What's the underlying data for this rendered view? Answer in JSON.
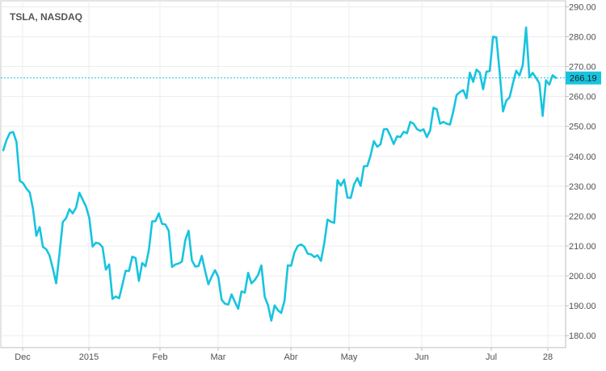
{
  "chart_data": {
    "type": "line",
    "title": "TSLA, NASDAQ",
    "xlabel": "",
    "ylabel": "",
    "ylim": [
      176,
      292
    ],
    "yticks": [
      "180.00",
      "190.00",
      "200.00",
      "210.00",
      "220.00",
      "230.00",
      "240.00",
      "250.00",
      "260.00",
      "270.00",
      "280.00",
      "290.00"
    ],
    "xticks": [
      "Dec",
      "2015",
      "Feb",
      "Mar",
      "Abr",
      "May",
      "Jun",
      "Jul",
      "28"
    ],
    "current_value": 266.19,
    "current_label": "266.19",
    "series": [
      {
        "values": [
          242.0,
          245.4,
          247.8,
          248.1,
          244.8,
          231.8,
          231.0,
          229.2,
          227.9,
          222.3,
          213.4,
          216.3,
          209.7,
          208.9,
          206.8,
          202.5,
          197.5,
          207.4,
          218.0,
          219.3,
          222.3,
          220.9,
          222.8,
          227.8,
          225.5,
          223.2,
          219.4,
          209.8,
          211.1,
          210.8,
          209.6,
          202.1,
          203.8,
          192.3,
          193.1,
          192.5,
          196.9,
          201.7,
          201.6,
          206.4,
          206.0,
          198.3,
          204.3,
          203.2,
          208.6,
          218.2,
          218.3,
          220.9,
          217.4,
          217.2,
          215.1,
          203.0,
          203.8,
          204.1,
          204.8,
          211.9,
          215.1,
          205.2,
          203.1,
          203.3,
          206.7,
          201.7,
          197.2,
          199.7,
          201.9,
          199.6,
          192.0,
          190.7,
          190.4,
          193.8,
          191.3,
          189.0,
          194.8,
          194.4,
          201.0,
          197.5,
          198.6,
          200.3,
          203.5,
          193.0,
          190.2,
          185.0,
          190.1,
          188.5,
          187.6,
          191.7,
          203.5,
          203.4,
          207.8,
          210.0,
          210.5,
          209.7,
          207.4,
          207.2,
          206.3,
          206.9,
          205.0,
          210.9,
          218.8,
          218.1,
          217.7,
          232.0,
          230.2,
          232.2,
          226.2,
          226.1,
          230.6,
          232.7,
          230.1,
          236.7,
          236.7,
          240.2,
          245.1,
          243.2,
          244.0,
          249.0,
          249.1,
          246.8,
          244.1,
          246.7,
          246.4,
          248.2,
          247.7,
          251.5,
          250.9,
          249.1,
          248.5,
          249.0,
          246.4,
          248.7,
          256.2,
          255.7,
          250.9,
          251.5,
          250.9,
          250.6,
          255.0,
          260.5,
          261.5,
          262.1,
          259.4,
          268.0,
          264.9,
          269.0,
          268.0,
          262.4,
          268.3,
          268.5,
          280.0,
          279.8,
          268.1,
          255.0,
          258.6,
          259.7,
          264.4,
          268.6,
          267.0,
          270.5,
          283.1,
          266.4,
          267.9,
          266.2,
          264.4,
          253.5,
          265.4,
          264.0,
          267.1,
          266.2
        ]
      }
    ],
    "colors": {
      "line": "#17c4df",
      "current_marker": "#17c4df",
      "grid": "#ececec",
      "frame": "#c8c8c8"
    },
    "grid": true,
    "price_axis_side": "right",
    "legend": "none"
  }
}
